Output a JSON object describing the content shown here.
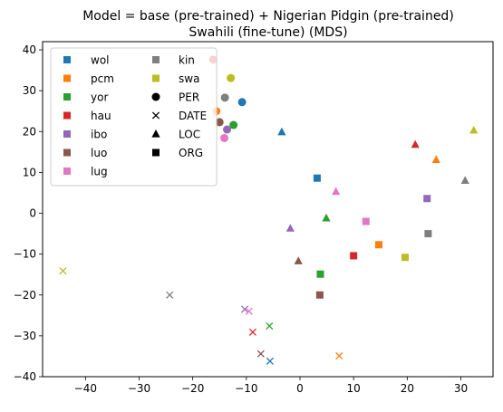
{
  "chart_data": {
    "type": "scatter",
    "title_line1": "Model = base (pre-trained) + Nigerian Pidgin (pre-trained)",
    "title_line2": "Swahili (fine-tune) (MDS)",
    "xlabel": "",
    "ylabel": "",
    "xlim": [
      -48,
      36
    ],
    "ylim": [
      -40,
      42
    ],
    "xticks": [
      -40,
      -30,
      -20,
      -10,
      0,
      10,
      20,
      30
    ],
    "yticks": [
      -40,
      -30,
      -20,
      -10,
      0,
      10,
      20,
      30,
      40
    ],
    "grid": false,
    "legend_position": "top-left",
    "languages": [
      {
        "code": "wol",
        "color": "#1f77b4"
      },
      {
        "code": "pcm",
        "color": "#ff7f0e"
      },
      {
        "code": "yor",
        "color": "#2ca02c"
      },
      {
        "code": "hau",
        "color": "#d62728"
      },
      {
        "code": "ibo",
        "color": "#9467bd"
      },
      {
        "code": "luo",
        "color": "#8c564b"
      },
      {
        "code": "lug",
        "color": "#e377c2"
      },
      {
        "code": "kin",
        "color": "#7f7f7f"
      },
      {
        "code": "swa",
        "color": "#bcbd22"
      }
    ],
    "entity_types": [
      {
        "label": "PER",
        "marker": "circle"
      },
      {
        "label": "DATE",
        "marker": "x"
      },
      {
        "label": "LOC",
        "marker": "triangle"
      },
      {
        "label": "ORG",
        "marker": "square"
      }
    ],
    "points": [
      {
        "lang": "wol",
        "entity": "PER",
        "x": -10.8,
        "y": 27.2
      },
      {
        "lang": "wol",
        "entity": "LOC",
        "x": -3.4,
        "y": 19.9
      },
      {
        "lang": "wol",
        "entity": "ORG",
        "x": 3.2,
        "y": 8.6
      },
      {
        "lang": "wol",
        "entity": "DATE",
        "x": -5.6,
        "y": -36.2
      },
      {
        "lang": "pcm",
        "entity": "PER",
        "x": -15.6,
        "y": 25.0
      },
      {
        "lang": "pcm",
        "entity": "LOC",
        "x": 25.4,
        "y": 13.1
      },
      {
        "lang": "pcm",
        "entity": "ORG",
        "x": 14.7,
        "y": -7.7
      },
      {
        "lang": "pcm",
        "entity": "DATE",
        "x": 7.3,
        "y": -34.9
      },
      {
        "lang": "yor",
        "entity": "PER",
        "x": -12.4,
        "y": 21.6
      },
      {
        "lang": "yor",
        "entity": "LOC",
        "x": 4.9,
        "y": -1.2
      },
      {
        "lang": "yor",
        "entity": "ORG",
        "x": 3.8,
        "y": -14.9
      },
      {
        "lang": "yor",
        "entity": "DATE",
        "x": -5.7,
        "y": -27.6
      },
      {
        "lang": "hau",
        "entity": "PER",
        "x": -16.2,
        "y": 37.6
      },
      {
        "lang": "hau",
        "entity": "LOC",
        "x": 21.5,
        "y": 16.8
      },
      {
        "lang": "hau",
        "entity": "ORG",
        "x": 10.0,
        "y": -10.4
      },
      {
        "lang": "hau",
        "entity": "DATE",
        "x": -8.8,
        "y": -29.1
      },
      {
        "lang": "ibo",
        "entity": "PER",
        "x": -13.6,
        "y": 20.5
      },
      {
        "lang": "ibo",
        "entity": "LOC",
        "x": -1.8,
        "y": -3.7
      },
      {
        "lang": "ibo",
        "entity": "ORG",
        "x": 23.7,
        "y": 3.6
      },
      {
        "lang": "ibo",
        "entity": "DATE",
        "x": -10.3,
        "y": -23.5
      },
      {
        "lang": "luo",
        "entity": "PER",
        "x": -15.0,
        "y": 22.3
      },
      {
        "lang": "luo",
        "entity": "LOC",
        "x": -0.3,
        "y": -11.7
      },
      {
        "lang": "luo",
        "entity": "ORG",
        "x": 3.7,
        "y": -20.0
      },
      {
        "lang": "luo",
        "entity": "DATE",
        "x": -7.3,
        "y": -34.4
      },
      {
        "lang": "lug",
        "entity": "PER",
        "x": -14.1,
        "y": 18.4
      },
      {
        "lang": "lug",
        "entity": "LOC",
        "x": 6.7,
        "y": 5.3
      },
      {
        "lang": "lug",
        "entity": "ORG",
        "x": 12.3,
        "y": -2.0
      },
      {
        "lang": "lug",
        "entity": "DATE",
        "x": -9.5,
        "y": -24.0
      },
      {
        "lang": "kin",
        "entity": "PER",
        "x": -14.0,
        "y": 28.3
      },
      {
        "lang": "kin",
        "entity": "LOC",
        "x": 30.8,
        "y": 8.0
      },
      {
        "lang": "kin",
        "entity": "ORG",
        "x": 23.9,
        "y": -5.0
      },
      {
        "lang": "kin",
        "entity": "DATE",
        "x": -24.3,
        "y": -20.0
      },
      {
        "lang": "swa",
        "entity": "PER",
        "x": -12.9,
        "y": 33.1
      },
      {
        "lang": "swa",
        "entity": "LOC",
        "x": 32.4,
        "y": 20.3
      },
      {
        "lang": "swa",
        "entity": "ORG",
        "x": 19.6,
        "y": -10.8
      },
      {
        "lang": "swa",
        "entity": "DATE",
        "x": -44.2,
        "y": -14.1
      }
    ]
  }
}
